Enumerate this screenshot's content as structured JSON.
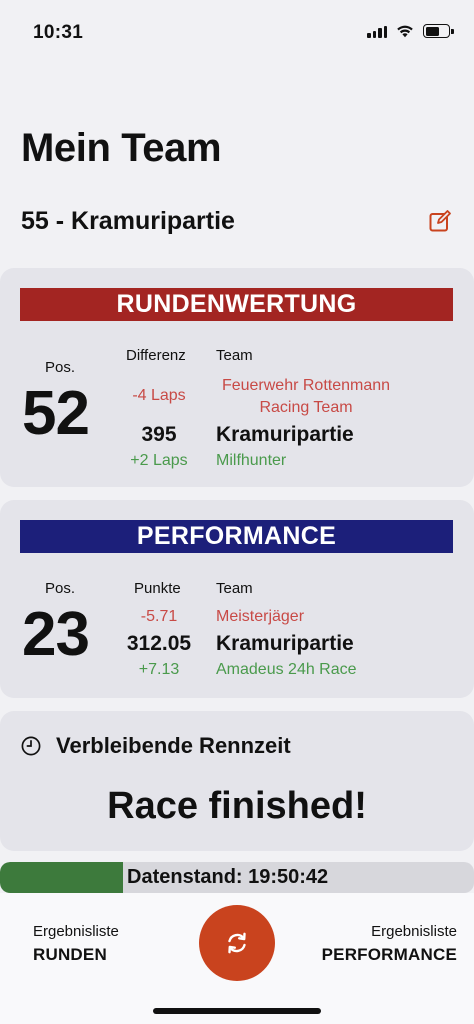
{
  "status_bar": {
    "time": "10:31",
    "battery_level": 0.6
  },
  "header": {
    "title": "Mein Team",
    "team_name": "55 - Kramuripartie"
  },
  "rounds": {
    "banner": "RUNDENWERTUNG",
    "pos_label": "Pos.",
    "pos_value": "52",
    "col_diff": "Differenz",
    "col_team": "Team",
    "above_diff": "-4 Laps",
    "above_team_line1": "Feuerwehr Rottenmann",
    "above_team_line2": "Racing Team",
    "own_value": "395",
    "own_team": "Kramuripartie",
    "below_diff": "+2 Laps",
    "below_team": "Milfhunter"
  },
  "performance": {
    "banner": "PERFORMANCE",
    "pos_label": "Pos.",
    "pos_value": "23",
    "col_points": "Punkte",
    "col_team": "Team",
    "above_diff": "-5.71",
    "above_team": "Meisterjäger",
    "own_value": "312.05",
    "own_team": "Kramuripartie",
    "below_diff": "+7.13",
    "below_team": "Amadeus 24h Race"
  },
  "race_time": {
    "title": "Verbleibende Rennzeit",
    "status": "Race finished!"
  },
  "data_status": {
    "label": "Datenstand: 19:50:42",
    "progress": 0.26
  },
  "bottom_nav": {
    "left_small": "Ergebnisliste",
    "left_big": "RUNDEN",
    "right_small": "Ergebnisliste",
    "right_big": "PERFORMANCE"
  },
  "colors": {
    "rounds_banner": "#a32522",
    "performance_banner": "#1c1f7a",
    "accent": "#c9431e",
    "negative": "#c84a46",
    "positive": "#4a9a4c",
    "progress": "#3d7a3c"
  },
  "icons": [
    "signal-icon",
    "wifi-icon",
    "battery-icon",
    "edit-icon",
    "clock-icon",
    "refresh-icon"
  ]
}
